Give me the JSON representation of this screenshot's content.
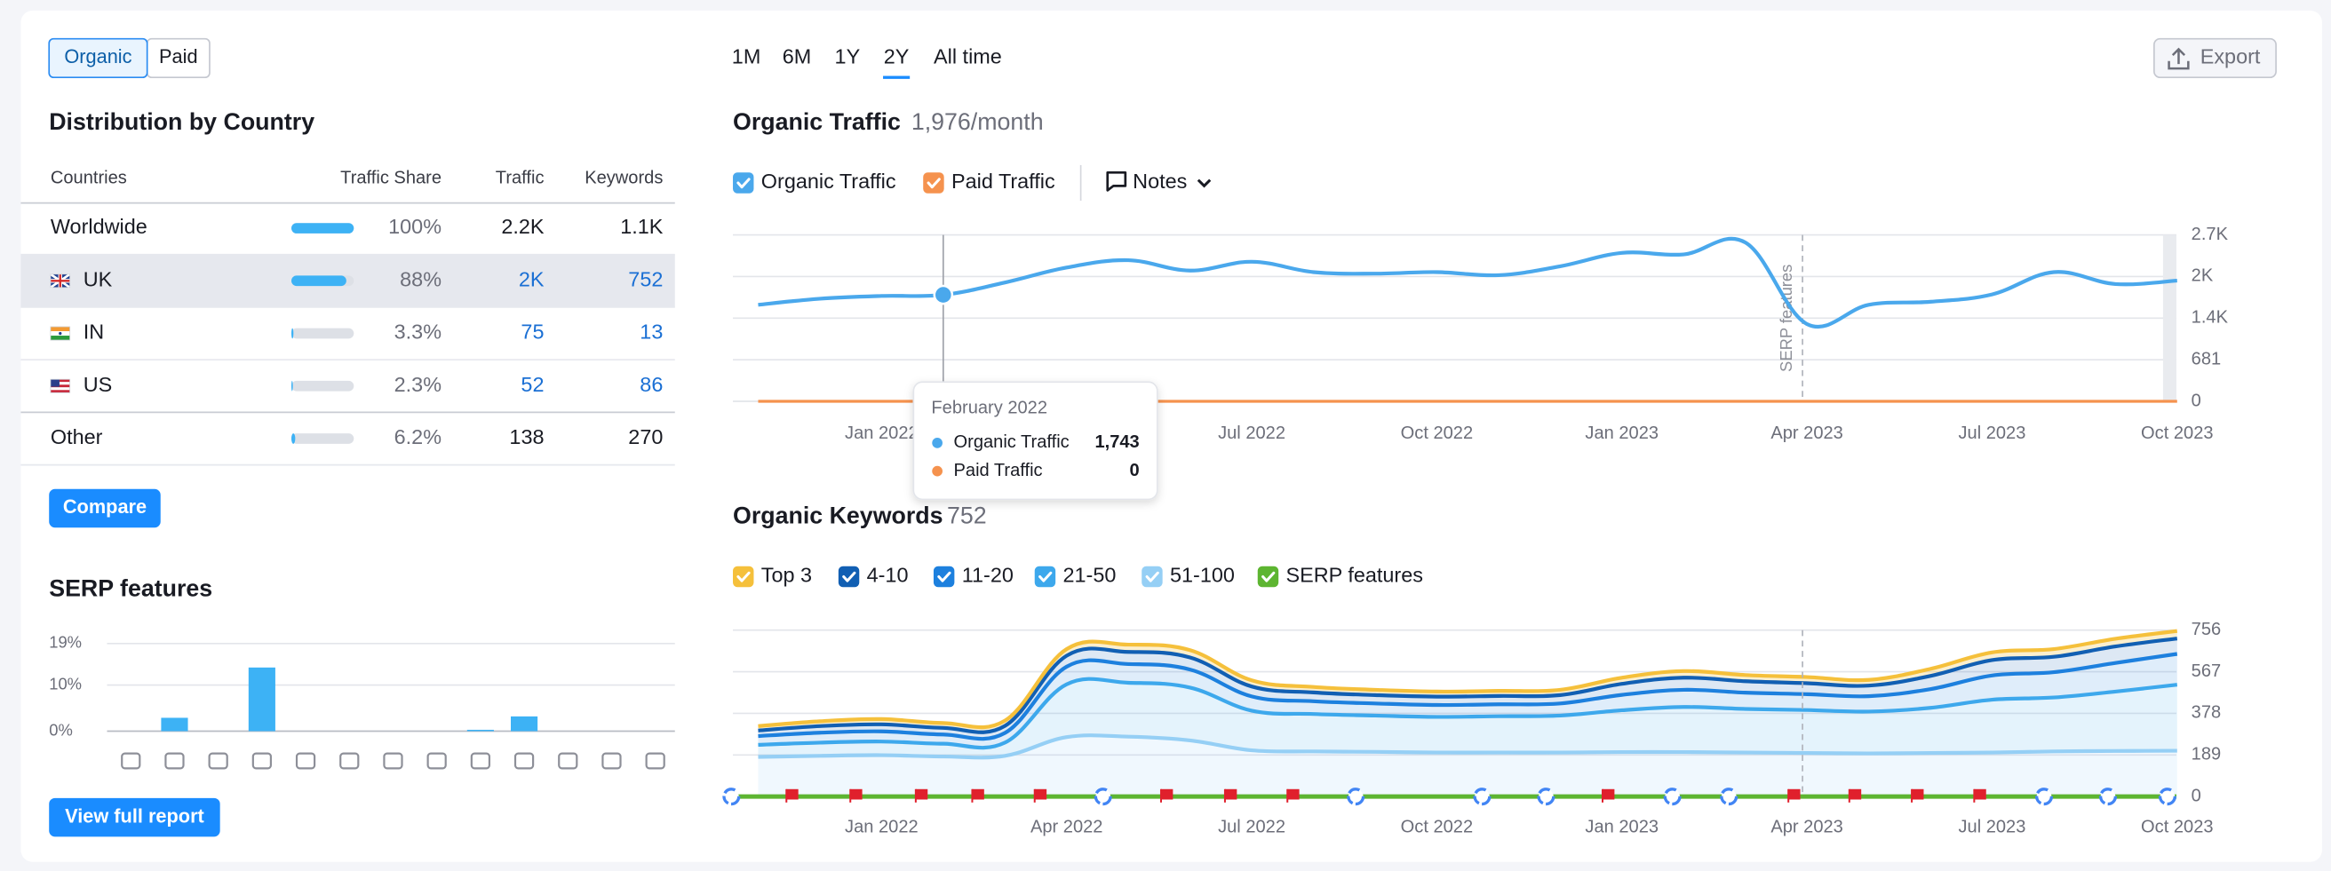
{
  "ui": {
    "source_tabs": [
      "Organic",
      "Paid"
    ],
    "selected_source": 0,
    "country_panel": {
      "title": "Distribution by Country",
      "columns": [
        "Countries",
        "Traffic Share",
        "Traffic",
        "Keywords"
      ],
      "rows": [
        {
          "country": "Worldwide",
          "share": 100,
          "share_label": "100%",
          "traffic": "2.2K",
          "keywords": "1.1K"
        },
        {
          "country": "UK",
          "share": 88,
          "share_label": "88%",
          "traffic": "2K",
          "keywords": "752"
        },
        {
          "country": "IN",
          "share": 3.3,
          "share_label": "3.3%",
          "traffic": "75",
          "keywords": "13"
        },
        {
          "country": "US",
          "share": 2.3,
          "share_label": "2.3%",
          "traffic": "52",
          "keywords": "86"
        },
        {
          "country": "Other",
          "share": 6.2,
          "share_label": "6.2%",
          "traffic": "138",
          "keywords": "270"
        }
      ],
      "selected_row": 1,
      "compare_button": "Compare"
    },
    "view_full_report": "View full report",
    "periods": [
      "1M",
      "6M",
      "1Y",
      "2Y",
      "All time"
    ],
    "selected_period": 3,
    "export": "Export",
    "notes": "Notes"
  },
  "chart_data": [
    {
      "type": "bar",
      "title": "SERP features",
      "categories": [
        null,
        null,
        null,
        null,
        null,
        null,
        null,
        null,
        null,
        null,
        null,
        null,
        null
      ],
      "values": [
        0,
        2.9,
        0,
        13.8,
        0,
        0,
        0,
        0,
        0.3,
        3.2,
        0,
        0,
        0
      ],
      "color": "#3db2f5",
      "ylim": [
        0,
        19
      ],
      "yticks": [
        {
          "value": 0,
          "label": "0%"
        },
        {
          "value": 10,
          "label": "10%"
        },
        {
          "value": 19,
          "label": "19%"
        }
      ],
      "grid": true
    },
    {
      "type": "line",
      "title": "Organic Traffic",
      "subtitle": "1,976/month",
      "categories": [
        null,
        null,
        "Jan 2022",
        null,
        null,
        "Apr 2022",
        null,
        null,
        "Jul 2022",
        null,
        null,
        "Oct 2022",
        null,
        null,
        "Jan 2023",
        null,
        null,
        "Apr 2023",
        null,
        null,
        "Jul 2023",
        null,
        null,
        "Oct 2023"
      ],
      "series": [
        {
          "name": "Organic Traffic",
          "color": "#4aa8ec",
          "values": [
            1580,
            1680,
            1725,
            1743,
            1945,
            2190,
            2310,
            2140,
            2285,
            2115,
            2090,
            2115,
            2065,
            2210,
            2430,
            2405,
            2600,
            1265,
            1580,
            1630,
            1750,
            2115,
            1920,
            1976
          ]
        },
        {
          "name": "Paid Traffic",
          "color": "#f5924e",
          "values": [
            0,
            0,
            0,
            0,
            0,
            0,
            0,
            0,
            0,
            0,
            0,
            0,
            0,
            0,
            0,
            0,
            0,
            0,
            0,
            0,
            0,
            0,
            0,
            0
          ]
        }
      ],
      "ylim": [
        0,
        2724
      ],
      "yticks": [
        0,
        681,
        {
          "value": 1362,
          "label": "1.4K"
        },
        {
          "value": 2043,
          "label": "2K"
        },
        {
          "value": 2724,
          "label": "2.7K"
        }
      ],
      "grid": true,
      "annotation": {
        "text": "SERP features",
        "x": "Apr 2023"
      },
      "tooltip": {
        "title": "February 2022",
        "rows": [
          {
            "name": "Organic Traffic",
            "value": "1,743"
          },
          {
            "name": "Paid Traffic",
            "value": "0"
          }
        ]
      }
    },
    {
      "type": "stacked_area",
      "title": "Organic Keywords",
      "subtitle": "752",
      "categories": [
        null,
        null,
        "Jan 2022",
        null,
        null,
        "Apr 2022",
        null,
        null,
        "Jul 2022",
        null,
        null,
        "Oct 2022",
        null,
        null,
        "Jan 2023",
        null,
        null,
        "Apr 2023",
        null,
        null,
        "Jul 2023",
        null,
        null,
        "Oct 2023"
      ],
      "series": [
        {
          "name": "Top 3",
          "color": "#f5c03b",
          "values": [
            20,
            22,
            24,
            22,
            24,
            30,
            33,
            33,
            28,
            25,
            24,
            23,
            23,
            24,
            28,
            30,
            28,
            28,
            26,
            32,
            35,
            35,
            35,
            34
          ]
        },
        {
          "name": "4-10",
          "color": "#115fb3",
          "values": [
            25,
            30,
            32,
            30,
            32,
            50,
            55,
            55,
            45,
            40,
            38,
            38,
            38,
            38,
            50,
            55,
            52,
            50,
            48,
            60,
            70,
            70,
            75,
            70
          ]
        },
        {
          "name": "11-20",
          "color": "#1d80de",
          "values": [
            40,
            45,
            46,
            42,
            44,
            80,
            85,
            82,
            65,
            58,
            55,
            54,
            54,
            55,
            70,
            78,
            74,
            72,
            70,
            85,
            110,
            115,
            130,
            140
          ]
        },
        {
          "name": "21-50",
          "color": "#3da8ec",
          "values": [
            55,
            60,
            62,
            58,
            60,
            240,
            245,
            240,
            180,
            170,
            165,
            162,
            165,
            168,
            190,
            205,
            198,
            195,
            190,
            205,
            240,
            245,
            270,
            300
          ]
        },
        {
          "name": "51-100",
          "color": "#95cff5",
          "values": [
            180,
            185,
            188,
            182,
            185,
            270,
            272,
            255,
            210,
            205,
            203,
            200,
            200,
            200,
            202,
            202,
            200,
            198,
            196,
            198,
            200,
            205,
            207,
            208
          ]
        }
      ],
      "events": {
        "name": "SERP features",
        "color": "#5db531"
      },
      "ylim": [
        0,
        756
      ],
      "yticks": [
        0,
        189,
        378,
        567,
        756
      ],
      "grid": true,
      "marker_x": "Apr 2023"
    }
  ]
}
